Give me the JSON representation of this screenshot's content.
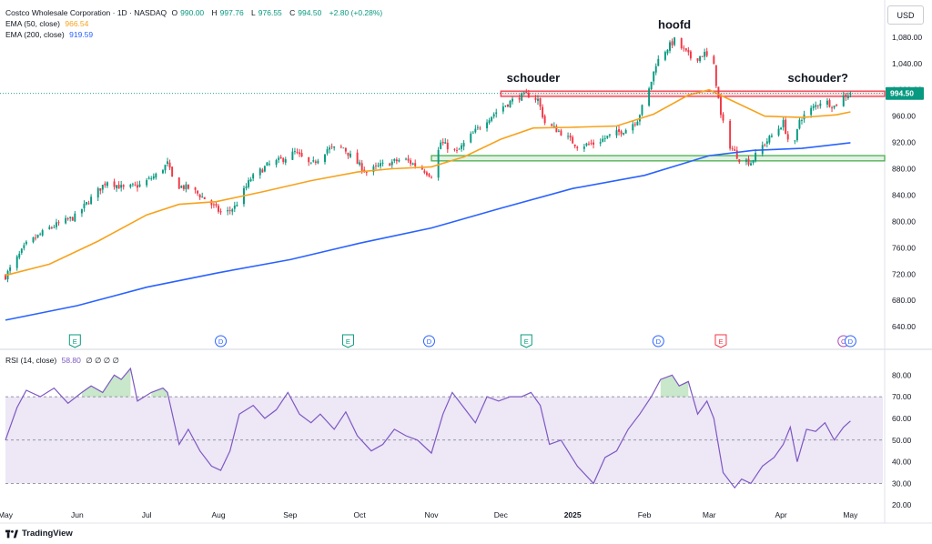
{
  "header": {
    "symbol_line": "Costco Wholesale Corporation · 1D · NASDAQ",
    "ohlc": [
      {
        "k": "O",
        "v": "990.00"
      },
      {
        "k": "H",
        "v": "997.76"
      },
      {
        "k": "L",
        "v": "976.55"
      },
      {
        "k": "C",
        "v": "994.50"
      }
    ],
    "change": "+2.80 (+0.28%)",
    "ema50_label": "EMA (50, close)",
    "ema50_value": "966.54",
    "ema200_label": "EMA (200, close)",
    "ema200_value": "919.59",
    "currency_button": "USD",
    "rsi_label": "RSI (14, close)",
    "rsi_value": "58.80",
    "rsi_extra": "∅ ∅ ∅ ∅"
  },
  "brand": "TradingView",
  "colors": {
    "up": "#089981",
    "down": "#f23645",
    "ema50": "#f7a21b",
    "ema200": "#2962ff",
    "rsi": "#7e57c2",
    "rsi_band": "#ede7f6",
    "resistance": "#f23645",
    "support": "#4caf50"
  },
  "chart_data": [
    {
      "type": "candlestick",
      "title": "Costco Wholesale Corporation · 1D · NASDAQ",
      "ylim": [
        625,
        1095
      ],
      "y_ticks": [
        640,
        680,
        720,
        760,
        800,
        840,
        880,
        920,
        960,
        1000,
        1040,
        1080
      ],
      "y_tick_labels": [
        "640.00",
        "680.00",
        "720.00",
        "760.00",
        "800.00",
        "840.00",
        "880.00",
        "920.00",
        "960.00",
        "1,000.00",
        "1,040.00",
        "1,080.00"
      ],
      "x_labels": [
        "May",
        "Jun",
        "Jul",
        "Aug",
        "Sep",
        "Oct",
        "Nov",
        "Dec",
        "2025",
        "Feb",
        "Mar",
        "Apr",
        "May"
      ],
      "x_label_dates": [
        "2024-05-01",
        "2024-06-01",
        "2024-07-01",
        "2024-08-01",
        "2024-09-01",
        "2024-10-01",
        "2024-11-01",
        "2024-12-01",
        "2025-01-01",
        "2025-02-01",
        "2025-03-01",
        "2025-04-01",
        "2025-05-01"
      ],
      "x_range": [
        "2024-05-01",
        "2025-05-15"
      ],
      "close_path": [
        [
          "2024-05-01",
          717
        ],
        [
          "2024-05-10",
          765
        ],
        [
          "2024-05-20",
          790
        ],
        [
          "2024-05-31",
          807
        ],
        [
          "2024-06-07",
          835
        ],
        [
          "2024-06-14",
          862
        ],
        [
          "2024-06-21",
          850
        ],
        [
          "2024-06-28",
          855
        ],
        [
          "2024-07-05",
          870
        ],
        [
          "2024-07-10",
          888
        ],
        [
          "2024-07-13",
          855
        ],
        [
          "2024-07-20",
          850
        ],
        [
          "2024-07-27",
          832
        ],
        [
          "2024-08-03",
          810
        ],
        [
          "2024-08-08",
          822
        ],
        [
          "2024-08-15",
          865
        ],
        [
          "2024-08-22",
          885
        ],
        [
          "2024-08-29",
          895
        ],
        [
          "2024-09-03",
          905
        ],
        [
          "2024-09-10",
          885
        ],
        [
          "2024-09-17",
          910
        ],
        [
          "2024-09-24",
          912
        ],
        [
          "2024-09-28",
          895
        ],
        [
          "2024-10-04",
          875
        ],
        [
          "2024-10-10",
          885
        ],
        [
          "2024-10-20",
          895
        ],
        [
          "2024-10-28",
          880
        ],
        [
          "2024-11-01",
          870
        ],
        [
          "2024-11-05",
          920
        ],
        [
          "2024-11-12",
          905
        ],
        [
          "2024-11-18",
          930
        ],
        [
          "2024-11-25",
          955
        ],
        [
          "2024-12-02",
          975
        ],
        [
          "2024-12-09",
          990
        ],
        [
          "2024-12-13",
          992
        ],
        [
          "2024-12-17",
          985
        ],
        [
          "2024-12-20",
          950
        ],
        [
          "2024-12-27",
          935
        ],
        [
          "2025-01-03",
          915
        ],
        [
          "2025-01-10",
          918
        ],
        [
          "2025-01-17",
          930
        ],
        [
          "2025-01-24",
          940
        ],
        [
          "2025-01-29",
          955
        ],
        [
          "2025-02-03",
          1000
        ],
        [
          "2025-02-06",
          1040
        ],
        [
          "2025-02-10",
          1060
        ],
        [
          "2025-02-14",
          1075
        ],
        [
          "2025-02-18",
          1060
        ],
        [
          "2025-02-22",
          1045
        ],
        [
          "2025-02-27",
          1055
        ],
        [
          "2025-03-03",
          1035
        ],
        [
          "2025-03-06",
          960
        ],
        [
          "2025-03-10",
          915
        ],
        [
          "2025-03-14",
          895
        ],
        [
          "2025-03-19",
          890
        ],
        [
          "2025-03-24",
          915
        ],
        [
          "2025-03-28",
          930
        ],
        [
          "2025-04-02",
          950
        ],
        [
          "2025-04-06",
          900
        ],
        [
          "2025-04-09",
          955
        ],
        [
          "2025-04-14",
          970
        ],
        [
          "2025-04-19",
          985
        ],
        [
          "2025-04-24",
          975
        ],
        [
          "2025-04-28",
          990
        ],
        [
          "2025-05-01",
          995
        ]
      ],
      "series": [
        {
          "name": "EMA (50, close)",
          "last": 966.54,
          "points": [
            [
              "2024-05-01",
              718
            ],
            [
              "2024-05-20",
              735
            ],
            [
              "2024-06-10",
              770
            ],
            [
              "2024-07-01",
              810
            ],
            [
              "2024-07-15",
              826
            ],
            [
              "2024-07-31",
              830
            ],
            [
              "2024-08-20",
              845
            ],
            [
              "2024-09-10",
              862
            ],
            [
              "2024-09-30",
              875
            ],
            [
              "2024-10-15",
              880
            ],
            [
              "2024-11-01",
              883
            ],
            [
              "2024-11-15",
              898
            ],
            [
              "2024-12-01",
              925
            ],
            [
              "2024-12-15",
              942
            ],
            [
              "2024-12-31",
              943
            ],
            [
              "2025-01-20",
              945
            ],
            [
              "2025-02-05",
              963
            ],
            [
              "2025-02-20",
              992
            ],
            [
              "2025-03-01",
              1000
            ],
            [
              "2025-03-10",
              985
            ],
            [
              "2025-03-25",
              960
            ],
            [
              "2025-04-10",
              958
            ],
            [
              "2025-04-25",
              962
            ],
            [
              "2025-05-01",
              966.5
            ]
          ]
        },
        {
          "name": "EMA (200, close)",
          "last": 919.59,
          "points": [
            [
              "2024-05-01",
              650
            ],
            [
              "2024-06-01",
              672
            ],
            [
              "2024-07-01",
              700
            ],
            [
              "2024-08-01",
              722
            ],
            [
              "2024-09-01",
              742
            ],
            [
              "2024-10-01",
              767
            ],
            [
              "2024-11-01",
              790
            ],
            [
              "2024-12-01",
              820
            ],
            [
              "2025-01-01",
              850
            ],
            [
              "2025-02-01",
              870
            ],
            [
              "2025-03-01",
              900
            ],
            [
              "2025-03-20",
              908
            ],
            [
              "2025-04-10",
              911
            ],
            [
              "2025-05-01",
              919.6
            ]
          ]
        }
      ],
      "zones": [
        {
          "kind": "resistance",
          "from": 990,
          "to": 998,
          "start": "2024-12-01"
        },
        {
          "kind": "support",
          "from": 892,
          "to": 900,
          "start": "2024-11-01"
        }
      ],
      "annotations": [
        {
          "text": "schouder",
          "date": "2024-12-15",
          "price": 1012
        },
        {
          "text": "hoofd",
          "date": "2025-02-14",
          "price": 1093
        },
        {
          "text": "schouder?",
          "date": "2025-04-17",
          "price": 1012
        }
      ],
      "last_price": 994.5,
      "last_price_label": "994.50",
      "event_markers": [
        {
          "type": "E",
          "date": "2024-05-31"
        },
        {
          "type": "D",
          "date": "2024-08-02"
        },
        {
          "type": "E",
          "date": "2024-09-26"
        },
        {
          "type": "D",
          "date": "2024-10-31"
        },
        {
          "type": "E",
          "date": "2024-12-12"
        },
        {
          "type": "D",
          "date": "2025-02-07"
        },
        {
          "type": "E",
          "date": "2025-03-06"
        },
        {
          "type": "C",
          "date": "2025-04-28"
        },
        {
          "type": "D",
          "date": "2025-05-01"
        }
      ]
    },
    {
      "type": "line",
      "title": "RSI (14, close)",
      "ylim": [
        18,
        86
      ],
      "y_ticks": [
        20,
        30,
        40,
        50,
        60,
        70,
        80
      ],
      "y_tick_labels": [
        "20.00",
        "30.00",
        "40.00",
        "50.00",
        "60.00",
        "70.00",
        "80.00"
      ],
      "bands": {
        "upper": 70,
        "middle": 50,
        "lower": 30
      },
      "series": [
        {
          "name": "RSI (14, close)",
          "last": 58.8,
          "points": [
            [
              "2024-05-01",
              50
            ],
            [
              "2024-05-06",
              65
            ],
            [
              "2024-05-10",
              73
            ],
            [
              "2024-05-16",
              70
            ],
            [
              "2024-05-22",
              74
            ],
            [
              "2024-05-28",
              67
            ],
            [
              "2024-06-03",
              72
            ],
            [
              "2024-06-07",
              75
            ],
            [
              "2024-06-12",
              72
            ],
            [
              "2024-06-17",
              80
            ],
            [
              "2024-06-20",
              78
            ],
            [
              "2024-06-24",
              83
            ],
            [
              "2024-06-27",
              68
            ],
            [
              "2024-07-03",
              72
            ],
            [
              "2024-07-08",
              74
            ],
            [
              "2024-07-10",
              72
            ],
            [
              "2024-07-15",
              48
            ],
            [
              "2024-07-19",
              55
            ],
            [
              "2024-07-24",
              45
            ],
            [
              "2024-07-29",
              38
            ],
            [
              "2024-08-02",
              36
            ],
            [
              "2024-08-06",
              45
            ],
            [
              "2024-08-10",
              62
            ],
            [
              "2024-08-16",
              66
            ],
            [
              "2024-08-21",
              60
            ],
            [
              "2024-08-26",
              64
            ],
            [
              "2024-08-31",
              72
            ],
            [
              "2024-09-05",
              62
            ],
            [
              "2024-09-10",
              58
            ],
            [
              "2024-09-14",
              62
            ],
            [
              "2024-09-20",
              55
            ],
            [
              "2024-09-25",
              63
            ],
            [
              "2024-09-30",
              52
            ],
            [
              "2024-10-06",
              45
            ],
            [
              "2024-10-11",
              48
            ],
            [
              "2024-10-16",
              55
            ],
            [
              "2024-10-21",
              52
            ],
            [
              "2024-10-26",
              50
            ],
            [
              "2024-11-01",
              44
            ],
            [
              "2024-11-06",
              62
            ],
            [
              "2024-11-10",
              72
            ],
            [
              "2024-11-15",
              65
            ],
            [
              "2024-11-20",
              58
            ],
            [
              "2024-11-25",
              70
            ],
            [
              "2024-11-30",
              68
            ],
            [
              "2024-12-05",
              70
            ],
            [
              "2024-12-10",
              70
            ],
            [
              "2024-12-14",
              72
            ],
            [
              "2024-12-18",
              66
            ],
            [
              "2024-12-22",
              48
            ],
            [
              "2024-12-27",
              50
            ],
            [
              "2025-01-03",
              38
            ],
            [
              "2025-01-10",
              30
            ],
            [
              "2025-01-15",
              42
            ],
            [
              "2025-01-20",
              45
            ],
            [
              "2025-01-25",
              55
            ],
            [
              "2025-01-30",
              62
            ],
            [
              "2025-02-04",
              70
            ],
            [
              "2025-02-08",
              78
            ],
            [
              "2025-02-13",
              80
            ],
            [
              "2025-02-16",
              75
            ],
            [
              "2025-02-20",
              77
            ],
            [
              "2025-02-24",
              62
            ],
            [
              "2025-02-28",
              68
            ],
            [
              "2025-03-03",
              60
            ],
            [
              "2025-03-07",
              35
            ],
            [
              "2025-03-12",
              28
            ],
            [
              "2025-03-15",
              32
            ],
            [
              "2025-03-19",
              30
            ],
            [
              "2025-03-24",
              38
            ],
            [
              "2025-03-29",
              42
            ],
            [
              "2025-04-02",
              48
            ],
            [
              "2025-04-05",
              56
            ],
            [
              "2025-04-08",
              40
            ],
            [
              "2025-04-12",
              55
            ],
            [
              "2025-04-16",
              54
            ],
            [
              "2025-04-20",
              58
            ],
            [
              "2025-04-24",
              50
            ],
            [
              "2025-04-28",
              56
            ],
            [
              "2025-05-01",
              58.8
            ]
          ]
        }
      ]
    }
  ]
}
